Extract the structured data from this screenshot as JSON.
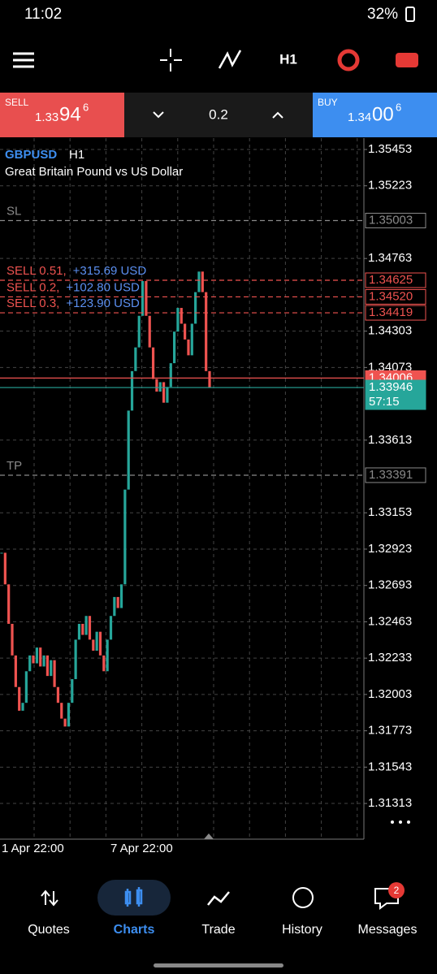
{
  "status_bar": {
    "time": "11:02",
    "battery": "32%"
  },
  "toolbar": {
    "timeframe": "H1"
  },
  "trade_panel": {
    "sell": {
      "label": "SELL",
      "price_main": "1.33",
      "price_big": "94",
      "price_small": "6"
    },
    "volume": "0.2",
    "buy": {
      "label": "BUY",
      "price_main": "1.34",
      "price_big": "00",
      "price_small": "6"
    }
  },
  "chart_data": {
    "type": "candlestick",
    "symbol": "GBPUSD",
    "timeframe": "H1",
    "title": "Great Britain Pound vs US Dollar",
    "values": [
      1.329,
      1.327,
      1.3245,
      1.3225,
      1.3205,
      1.319,
      1.3195,
      1.3215,
      1.3225,
      1.322,
      1.323,
      1.3218,
      1.3225,
      1.3212,
      1.3222,
      1.3205,
      1.3195,
      1.3185,
      1.318,
      1.3195,
      1.321,
      1.3235,
      1.3245,
      1.3238,
      1.325,
      1.3235,
      1.3228,
      1.324,
      1.3225,
      1.3215,
      1.3235,
      1.325,
      1.3262,
      1.3255,
      1.327,
      1.333,
      1.338,
      1.3405,
      1.342,
      1.344,
      1.3462,
      1.344,
      1.342,
      1.34,
      1.3392,
      1.3398,
      1.3385,
      1.3395,
      1.341,
      1.343,
      1.3445,
      1.3435,
      1.3425,
      1.3415,
      1.3435,
      1.3455,
      1.3468,
      1.3455,
      1.3405,
      1.33946
    ],
    "up_color": "#26a69a",
    "down_color": "#ef5350",
    "ylim": [
      1.31087,
      1.35525
    ],
    "yticks": [
      1.35453,
      1.35223,
      1.34763,
      1.34303,
      1.34073,
      1.33613,
      1.33153,
      1.32923,
      1.32693,
      1.32463,
      1.32233,
      1.32003,
      1.31773,
      1.31543,
      1.31313
    ],
    "grid": true,
    "xlabels": [
      "1 Apr 22:00",
      "7 Apr 22:00"
    ],
    "levels": [
      {
        "name": "SL",
        "value": 1.35003,
        "color": "#8a8a8a",
        "dashed": true
      },
      {
        "label": "SELL 0.51,",
        "profit": "+315.69 USD",
        "value": 1.34625,
        "color": "#ef5350",
        "dashed": true
      },
      {
        "label": "SELL 0.2,",
        "profit": "+102.80 USD",
        "value": 1.3452,
        "value_label": "1.34520",
        "color": "#ef5350",
        "dashed": true
      },
      {
        "label": "SELL 0.3,",
        "profit": "+123.90 USD",
        "value": 1.34419,
        "color": "#ef5350",
        "dashed": true
      },
      {
        "value": 1.34006,
        "color": "#ef5350",
        "dashed": false
      },
      {
        "value": 1.33946,
        "color": "#26a69a",
        "dashed": false,
        "timer": "57:15"
      },
      {
        "name": "TP",
        "value": 1.33391,
        "color": "#8a8a8a",
        "dashed": true
      }
    ]
  },
  "nav": [
    {
      "label": "Quotes"
    },
    {
      "label": "Charts"
    },
    {
      "label": "Trade"
    },
    {
      "label": "History"
    },
    {
      "label": "Messages",
      "badge": "2"
    }
  ]
}
